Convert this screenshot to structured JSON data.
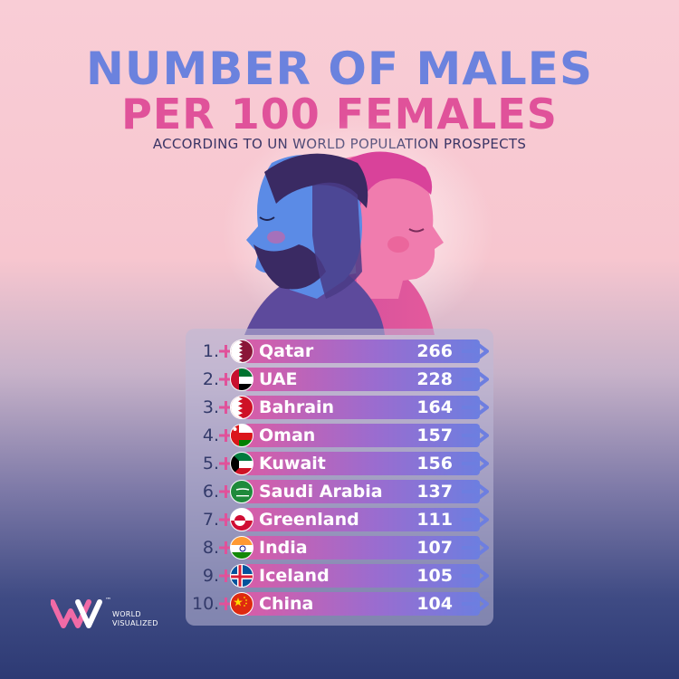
{
  "chart_data": {
    "type": "bar",
    "title": "NUMBER OF MALES",
    "title_line2": "PER 100 FEMALES",
    "subtitle": "ACCORDING TO UN WORLD POPULATION PROSPECTS",
    "ranks": [
      "1.",
      "2.",
      "3.",
      "4.",
      "5.",
      "6.",
      "7.",
      "8.",
      "9.",
      "10."
    ],
    "categories": [
      "Qatar",
      "UAE",
      "Bahrain",
      "Oman",
      "Kuwait",
      "Saudi Arabia",
      "Greenland",
      "India",
      "Iceland",
      "China"
    ],
    "values": [
      266,
      228,
      164,
      157,
      156,
      137,
      111,
      107,
      105,
      104
    ],
    "flag_icons": [
      "qatar-flag-icon",
      "uae-flag-icon",
      "bahrain-flag-icon",
      "oman-flag-icon",
      "kuwait-flag-icon",
      "saudi-arabia-flag-icon",
      "greenland-flag-icon",
      "india-flag-icon",
      "iceland-flag-icon",
      "china-flag-icon"
    ],
    "colors": {
      "title_male": "#6b82de",
      "title_female": "#e0529a",
      "bar_start": "#d85da7",
      "bar_end": "#6d7ee0",
      "arrow": "#6d7ee0"
    }
  },
  "brand": {
    "logo_icon": "world-visualized-logo-icon",
    "line1": "WORLD",
    "line2": "VISUALIZED",
    "trademark": "™"
  }
}
